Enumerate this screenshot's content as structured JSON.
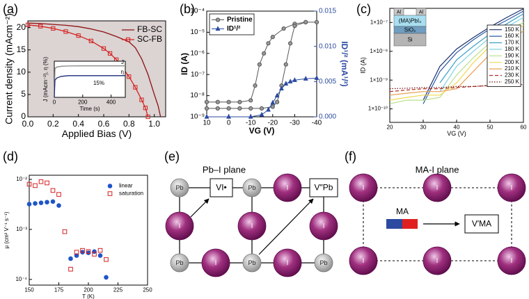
{
  "chart_data": [
    {
      "type": "line",
      "panel": "(a)",
      "xlabel": "Applied Bias (V)",
      "ylabel": "Current density (mAcm⁻²)",
      "plot_background": "#dcd3d3",
      "xlim": [
        0,
        1.09
      ],
      "xticks": [
        {
          "value": 0,
          "label": "0.0"
        },
        {
          "value": 0.2,
          "label": "0.2"
        },
        {
          "value": 0.4,
          "label": "0.4"
        },
        {
          "value": 0.6,
          "label": "0.6"
        },
        {
          "value": 0.8,
          "label": "0.8"
        },
        {
          "value": 1.0,
          "label": "1.0"
        }
      ],
      "ylim": [
        0,
        21.5
      ],
      "yticks": [
        0,
        5,
        10,
        15,
        20
      ],
      "legend": "upper right",
      "series": [
        {
          "name": "FB-SC",
          "color": "#8b1010",
          "x": [
            0,
            0.1,
            0.2,
            0.3,
            0.4,
            0.5,
            0.6,
            0.7,
            0.8,
            0.85,
            0.9,
            0.95,
            1.0,
            1.03,
            1.05
          ],
          "values": [
            21,
            20.9,
            20.7,
            20.5,
            20.2,
            19.7,
            19,
            18,
            16.8,
            15.5,
            13,
            9.5,
            5,
            2.5,
            0
          ]
        },
        {
          "name": "SC-FB",
          "color": "#d42020",
          "marker": "square",
          "marker_fill": "none",
          "x": [
            0,
            0.1,
            0.2,
            0.3,
            0.4,
            0.5,
            0.6,
            0.65,
            0.7,
            0.75,
            0.8,
            0.85,
            0.9,
            0.93,
            0.95
          ],
          "values": [
            20.6,
            20.3,
            19.8,
            19.1,
            18.2,
            17,
            15.3,
            14.2,
            12.8,
            11,
            9,
            6.6,
            3.8,
            2,
            0
          ]
        }
      ],
      "inset": {
        "xlabel": "Time (s)",
        "ylabel": "J (mAcm⁻²), η (%)",
        "plot_background": "#ffffff",
        "xlim": [
          0,
          500
        ],
        "xticks": [
          0,
          200,
          400
        ],
        "ylim": [
          0,
          25
        ],
        "legend": "line-end",
        "annotations": [
          "15%"
        ],
        "series": [
          {
            "name": "J",
            "color": "#888888",
            "x": [
              0,
              5,
              20,
              50,
              100,
              200,
              300,
              400,
              500
            ],
            "values": [
              0,
              20,
              21,
              21.5,
              21.7,
              21.8,
              21.8,
              21.8,
              21.8
            ]
          },
          {
            "name": "η",
            "color": "#1a2a7a",
            "x": [
              0,
              5,
              20,
              50,
              100,
              200,
              300,
              400,
              500
            ],
            "values": [
              0,
              12,
              13.5,
              14.5,
              15,
              15,
              15,
              15,
              15
            ]
          }
        ]
      }
    },
    {
      "type": "line",
      "panel": "(b)",
      "xlabel": "VG (V)",
      "ylabel": "ID (A)",
      "y2label": "ID¹/² (mA¹/²)",
      "xlim": [
        10,
        -40
      ],
      "xticks": [
        10,
        0,
        -10,
        -20,
        -30,
        -40
      ],
      "yscale": "log",
      "ylim": [
        1e-09,
        0.0001
      ],
      "yticks": [
        {
          "value": 1e-09,
          "label": "10⁻⁹"
        },
        {
          "value": 1e-08,
          "label": "10⁻⁸"
        },
        {
          "value": 1e-07,
          "label": "10⁻⁷"
        },
        {
          "value": 1e-06,
          "label": "10⁻⁶"
        },
        {
          "value": 1e-05,
          "label": "10⁻⁵"
        },
        {
          "value": 0.0001,
          "label": "10⁻⁴"
        }
      ],
      "y2lim": [
        0,
        0.015
      ],
      "y2ticks": [
        {
          "value": 0,
          "label": "0.000"
        },
        {
          "value": 0.005,
          "label": "0.005"
        },
        {
          "value": 0.01,
          "label": "0.010"
        },
        {
          "value": 0.015,
          "label": "0.015"
        }
      ],
      "legend": "upper left",
      "series": [
        {
          "name": "Pristine",
          "color": "#555555",
          "marker": "circle",
          "marker_fill": "#999999",
          "x": [
            10,
            5,
            0,
            -5,
            -10,
            -12,
            -14,
            -16,
            -18,
            -20,
            -25,
            -30,
            -35,
            -40,
            -35,
            -30,
            -28,
            -26,
            -24,
            -22,
            -20,
            -15,
            -10,
            -5,
            0,
            5,
            10
          ],
          "values": [
            5e-09,
            5e-09,
            5e-09,
            5e-09,
            6e-09,
            3e-08,
            3e-07,
            1e-06,
            3e-06,
            6e-06,
            1.5e-05,
            2.5e-05,
            3e-05,
            3e-05,
            3e-05,
            2e-05,
            3e-06,
            3e-07,
            3e-08,
            5e-09,
            3e-09,
            2.5e-09,
            2.5e-09,
            2.5e-09,
            2.5e-09,
            2.5e-09,
            2.5e-09
          ]
        },
        {
          "name": "ID¹/²",
          "color": "#2b4aa0",
          "marker": "triangle",
          "marker_fill": "#2b4aa0",
          "axis": "y2",
          "x": [
            10,
            0,
            -10,
            -15,
            -18,
            -20,
            -22,
            -24,
            -26,
            -28,
            -30,
            -35,
            -40
          ],
          "values": [
            0,
            0,
            0,
            0.0003,
            0.001,
            0.002,
            0.003,
            0.004,
            0.0047,
            0.005,
            0.0052,
            0.0054,
            0.0055
          ]
        }
      ]
    },
    {
      "type": "line",
      "panel": "(c)",
      "xlabel": "VG (V)",
      "ylabel": "ID (A)",
      "device_layers": [
        "Al",
        "Al",
        "(MA)PbI₃",
        "SiO₂",
        "Si"
      ],
      "xlim": [
        20,
        60
      ],
      "xticks": [
        20,
        30,
        40,
        50,
        60
      ],
      "yscale": "log",
      "ylim": [
        3.4e-11,
        3.1e-07
      ],
      "yticks": [
        {
          "value": 1e-10,
          "label": "1×10⁻¹⁰"
        },
        {
          "value": 1e-09,
          "label": "1×10⁻⁹"
        },
        {
          "value": 1e-08,
          "label": "1×10⁻⁸"
        },
        {
          "value": 1e-07,
          "label": "1×10⁻⁷"
        }
      ],
      "legend": "upper right",
      "x": [
        20,
        25,
        30,
        35,
        40,
        45,
        50,
        55,
        60
      ],
      "series": [
        {
          "name": "150 K",
          "color": "#1a2f6e",
          "values": [
            null,
            null,
            2e-10,
            3e-09,
            1.2e-08,
            3e-08,
            7e-08,
            1.5e-07,
            3e-07
          ]
        },
        {
          "name": "160 K",
          "color": "#2a5ca8",
          "values": [
            null,
            null,
            1.5e-10,
            2e-09,
            9e-09,
            2.5e-08,
            6e-08,
            1.2e-07,
            2.5e-07
          ]
        },
        {
          "name": "170 K",
          "color": "#3aa0c8",
          "values": [
            null,
            null,
            null,
            8e-10,
            5e-09,
            1.5e-08,
            4e-08,
            9e-08,
            2e-07
          ]
        },
        {
          "name": "180 K",
          "color": "#7fd3e0",
          "values": [
            null,
            null,
            null,
            4e-10,
            3e-09,
            1e-08,
            3e-08,
            7e-08,
            1.5e-07
          ]
        },
        {
          "name": "190 K",
          "color": "#b8e08a",
          "values": [
            1.5e-10,
            2e-10,
            2e-10,
            2.5e-10,
            1.5e-09,
            6e-09,
            2e-08,
            5e-08,
            1e-07
          ]
        },
        {
          "name": "200 K",
          "color": "#f0d850",
          "values": [
            2e-10,
            2.5e-10,
            3e-10,
            3e-10,
            8e-10,
            4e-09,
            1.5e-08,
            4e-08,
            8e-08
          ]
        },
        {
          "name": "210 K",
          "color": "#e8a050",
          "values": [
            3e-10,
            3.5e-10,
            4e-10,
            4e-10,
            5e-10,
            2e-09,
            8e-09,
            2.5e-08,
            5e-08
          ]
        },
        {
          "name": "230 K",
          "color": "#b03020",
          "dash": "dashed",
          "values": [
            4e-10,
            4.5e-10,
            5e-10,
            5e-10,
            5.5e-10,
            6e-10,
            6.5e-10,
            7e-10,
            7.5e-10
          ]
        },
        {
          "name": "250 K",
          "color": "#6b1010",
          "dash": "dotted",
          "values": [
            5e-10,
            5.2e-10,
            5.5e-10,
            5.5e-10,
            6e-10,
            6e-10,
            6.5e-10,
            6.5e-10,
            7e-10
          ]
        }
      ]
    },
    {
      "type": "scatter",
      "panel": "(d)",
      "xlabel": "T (K)",
      "ylabel": "μ (cm² V⁻¹ s⁻¹)",
      "xlim": [
        150,
        250
      ],
      "xticks": [
        150,
        175,
        200,
        225,
        250
      ],
      "yscale": "log",
      "ylim": [
        7.7e-05,
        0.0121
      ],
      "yticks": [
        {
          "value": 0.0001,
          "label": "10⁻⁴"
        },
        {
          "value": 0.001,
          "label": "10⁻³"
        },
        {
          "value": 0.01,
          "label": "10⁻²"
        }
      ],
      "legend": "upper right",
      "series": [
        {
          "name": "linear",
          "color": "#1f55c8",
          "marker": "circle",
          "marker_fill": "#1f55c8",
          "line": false,
          "x": [
            150,
            155,
            160,
            165,
            170,
            175,
            185,
            190,
            195,
            200,
            205,
            210,
            215
          ],
          "values": [
            0.0032,
            0.0033,
            0.0034,
            0.0035,
            0.0036,
            0.003,
            0.00026,
            0.0003,
            0.00035,
            0.00034,
            0.00036,
            0.0003,
            0.00011
          ]
        },
        {
          "name": "saturation",
          "color": "#d42020",
          "marker": "square",
          "marker_fill": "none",
          "line": false,
          "x": [
            150,
            155,
            160,
            165,
            170,
            175,
            180,
            185,
            190,
            195,
            200,
            205,
            210,
            215
          ],
          "values": [
            0.008,
            0.0075,
            0.009,
            0.0085,
            0.006,
            0.005,
            0.0009,
            0.00016,
            0.00035,
            0.00038,
            0.00036,
            0.00032,
            0.00038,
            0.00025
          ]
        }
      ]
    }
  ],
  "diagrams": [
    {
      "panel": "(e)",
      "title": "Pb–I plane",
      "nodes": [
        "Pb",
        "Pb",
        "I",
        "I",
        "I",
        "I",
        "Pb",
        "I",
        "Pb",
        "I",
        "Pb"
      ],
      "boxes": [
        "VI•",
        "V″Pb"
      ]
    },
    {
      "panel": "(f)",
      "title": "MA-I plane",
      "nodes": [
        "I",
        "I",
        "I",
        "I",
        "I",
        "I"
      ],
      "molecule": "MA",
      "boxes": [
        "V′MA"
      ]
    }
  ]
}
